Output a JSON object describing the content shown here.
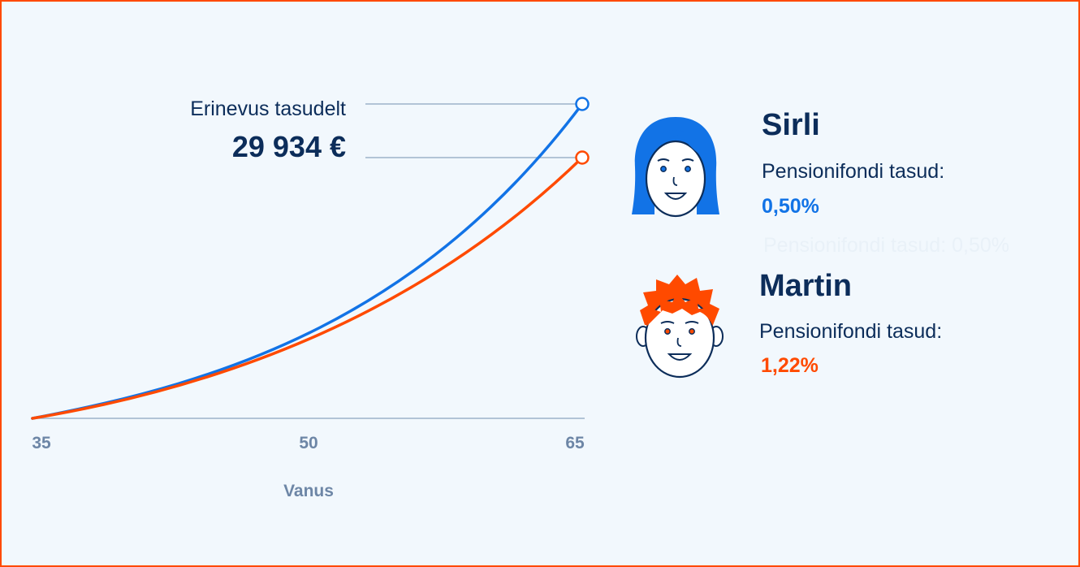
{
  "chart_data": {
    "type": "line",
    "xlabel": "Vanus",
    "x_ticks": [
      35,
      50,
      65
    ],
    "xlim": [
      35,
      65
    ],
    "series": [
      {
        "name": "Sirli",
        "color": "#1273e6",
        "fee": "0,50%"
      },
      {
        "name": "Martin",
        "color": "#ff4a00",
        "fee": "1,22%"
      }
    ],
    "annotation": {
      "label": "Erinevus tasudelt",
      "value": "29 934 €"
    },
    "grid": false
  },
  "people": [
    {
      "name": "Sirli",
      "fee_label": "Pensionifondi tasud:",
      "fee_value": "0,50%",
      "color": "#1273e6",
      "avatar_icon": "woman-face-icon"
    },
    {
      "name": "Martin",
      "fee_label": "Pensionifondi tasud:",
      "fee_value": "1,22%",
      "color": "#ff4a00",
      "avatar_icon": "man-face-icon"
    }
  ],
  "ghost_text": "Pensionifondi tasud: 0,50%"
}
